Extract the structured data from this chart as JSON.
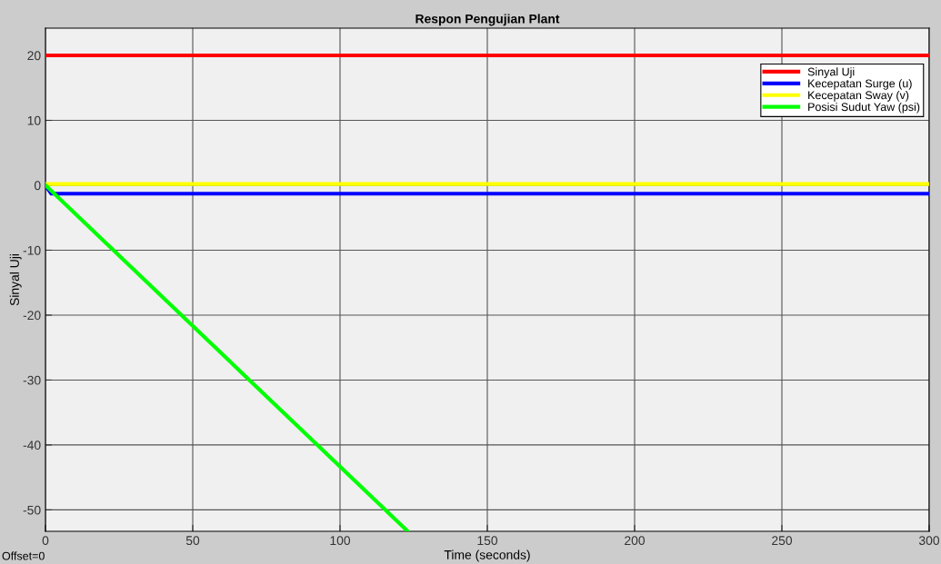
{
  "chart_data": {
    "type": "line",
    "title": "Respon Pengujian Plant",
    "xlabel": "Time (seconds)",
    "ylabel": "Sinyal Uji",
    "annotations": [
      "Offset=0"
    ],
    "series": [
      {
        "name": "Sinyal Uji",
        "color": "#ff0000",
        "x": [
          0,
          300
        ],
        "values": [
          20,
          20
        ]
      },
      {
        "name": "Kecepatan Surge (u)",
        "color": "#0000ff",
        "x": [
          0,
          2,
          300
        ],
        "values": [
          0,
          -1.3,
          -1.3
        ]
      },
      {
        "name": "Kecepatan Sway (v)",
        "color": "#ffff00",
        "x": [
          0,
          300
        ],
        "values": [
          0.2,
          0.2
        ]
      },
      {
        "name": "Posisi Sudut Yaw (psi)",
        "color": "#00ff00",
        "x": [
          0,
          123
        ],
        "values": [
          0,
          -53.3
        ]
      }
    ],
    "xlim": [
      0,
      300
    ],
    "xticks": [
      0,
      50,
      100,
      150,
      200,
      250,
      300
    ],
    "ylim": [
      -53.3,
      24.2
    ],
    "yticks": [
      -50,
      -40,
      -30,
      -20,
      -10,
      0,
      10,
      20
    ],
    "grid": true,
    "legend": "top right",
    "marker": "none",
    "line_style": "solid"
  }
}
